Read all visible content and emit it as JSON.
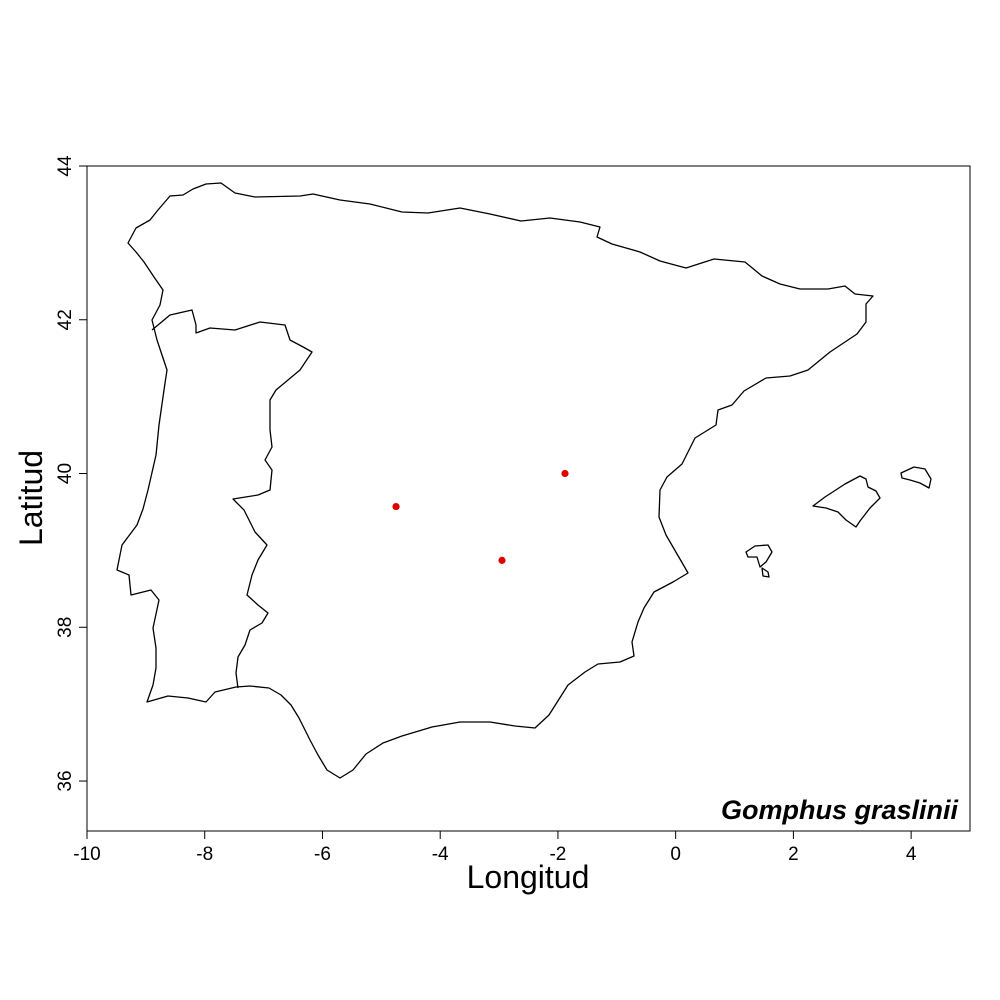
{
  "map": {
    "species": "Gomphus graslinii",
    "xlabel": "Longitud",
    "ylabel": "Latitud",
    "xlim": [
      -10,
      5
    ],
    "ylim": [
      35.35,
      44
    ],
    "x_ticks": [
      -10,
      -8,
      -6,
      -4,
      -2,
      0,
      2,
      4
    ],
    "y_ticks": [
      36,
      38,
      40,
      42,
      44
    ],
    "point_color": "#e00000",
    "points": [
      {
        "lon": -4.75,
        "lat": 39.57
      },
      {
        "lon": -2.95,
        "lat": 38.87
      },
      {
        "lon": -1.88,
        "lat": 40.0
      }
    ]
  }
}
